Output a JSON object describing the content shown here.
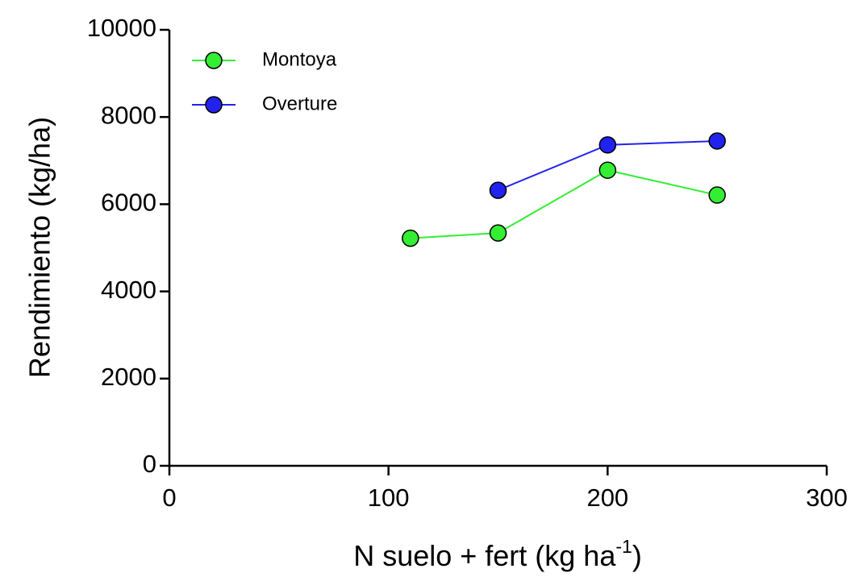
{
  "chart_data": {
    "type": "line",
    "x_label": {
      "main": "N suelo + fert (kg ha",
      "sup": "-1",
      "close": ")"
    },
    "y_label": "Rendimiento (kg/ha)",
    "x": [
      110,
      150,
      200,
      250
    ],
    "series": [
      {
        "name": "Montoya",
        "color": "#33ee33",
        "values": [
          5220,
          5340,
          6780,
          6210
        ]
      },
      {
        "name": "Overture",
        "color": "#2222ee",
        "values": [
          null,
          6320,
          7360,
          7450
        ]
      }
    ],
    "xlim": [
      0,
      300
    ],
    "xticks": [
      0,
      100,
      200,
      300
    ],
    "ylim": [
      0,
      10000
    ],
    "yticks": [
      0,
      2000,
      4000,
      6000,
      8000,
      10000
    ],
    "legend": "upper-left"
  }
}
